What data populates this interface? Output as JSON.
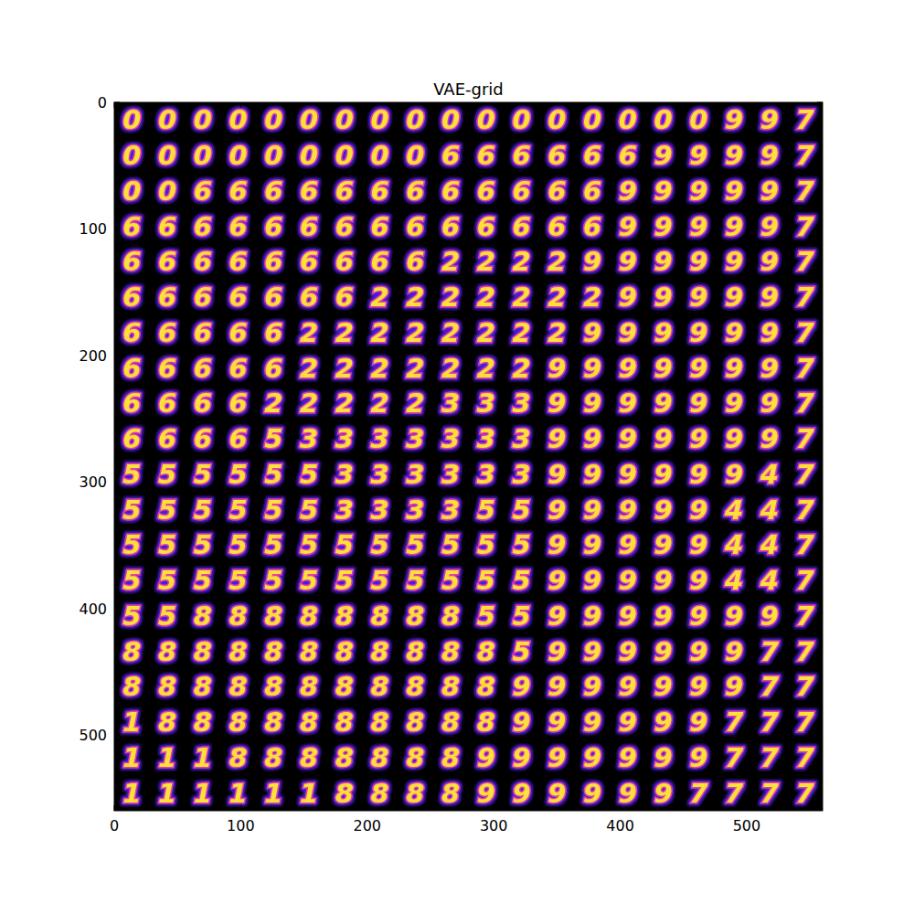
{
  "chart_data": {
    "type": "image",
    "title": "VAE-grid",
    "xlim": [
      0,
      560
    ],
    "ylim": [
      560,
      0
    ],
    "xticks": [
      0,
      100,
      200,
      300,
      400,
      500
    ],
    "yticks": [
      0,
      100,
      200,
      300,
      400,
      500
    ],
    "cells": [
      [
        0,
        0,
        0,
        0,
        0,
        0,
        0,
        0,
        0,
        0,
        0,
        0,
        0,
        0,
        0,
        0,
        0,
        9,
        9,
        7
      ],
      [
        0,
        0,
        0,
        0,
        0,
        0,
        0,
        0,
        0,
        6,
        6,
        6,
        6,
        6,
        6,
        9,
        9,
        9,
        9,
        7
      ],
      [
        0,
        0,
        6,
        6,
        6,
        6,
        6,
        6,
        6,
        6,
        6,
        6,
        6,
        6,
        9,
        9,
        9,
        9,
        9,
        7
      ],
      [
        6,
        6,
        6,
        6,
        6,
        6,
        6,
        6,
        6,
        6,
        6,
        6,
        6,
        6,
        9,
        9,
        9,
        9,
        9,
        7
      ],
      [
        6,
        6,
        6,
        6,
        6,
        6,
        6,
        6,
        6,
        2,
        2,
        2,
        2,
        9,
        9,
        9,
        9,
        9,
        9,
        7
      ],
      [
        6,
        6,
        6,
        6,
        6,
        6,
        6,
        2,
        2,
        2,
        2,
        2,
        2,
        2,
        9,
        9,
        9,
        9,
        9,
        7
      ],
      [
        6,
        6,
        6,
        6,
        6,
        2,
        2,
        2,
        2,
        2,
        2,
        2,
        2,
        9,
        9,
        9,
        9,
        9,
        9,
        7
      ],
      [
        6,
        6,
        6,
        6,
        6,
        2,
        2,
        2,
        2,
        2,
        2,
        2,
        9,
        9,
        9,
        9,
        9,
        9,
        9,
        7
      ],
      [
        6,
        6,
        6,
        6,
        2,
        2,
        2,
        2,
        2,
        3,
        3,
        3,
        9,
        9,
        9,
        9,
        9,
        9,
        9,
        7
      ],
      [
        6,
        6,
        6,
        6,
        5,
        3,
        3,
        3,
        3,
        3,
        3,
        3,
        9,
        9,
        9,
        9,
        9,
        9,
        9,
        7
      ],
      [
        5,
        5,
        5,
        5,
        5,
        5,
        3,
        3,
        3,
        3,
        3,
        3,
        9,
        9,
        9,
        9,
        9,
        9,
        4,
        7
      ],
      [
        5,
        5,
        5,
        5,
        5,
        5,
        3,
        3,
        3,
        3,
        5,
        5,
        9,
        9,
        9,
        9,
        9,
        4,
        4,
        7
      ],
      [
        5,
        5,
        5,
        5,
        5,
        5,
        5,
        5,
        5,
        5,
        5,
        5,
        9,
        9,
        9,
        9,
        9,
        4,
        4,
        7
      ],
      [
        5,
        5,
        5,
        5,
        5,
        5,
        5,
        5,
        5,
        5,
        5,
        5,
        9,
        9,
        9,
        9,
        9,
        4,
        4,
        7
      ],
      [
        5,
        5,
        8,
        8,
        8,
        8,
        8,
        8,
        8,
        8,
        5,
        5,
        9,
        9,
        9,
        9,
        9,
        9,
        9,
        7
      ],
      [
        8,
        8,
        8,
        8,
        8,
        8,
        8,
        8,
        8,
        8,
        8,
        5,
        9,
        9,
        9,
        9,
        9,
        9,
        7,
        7
      ],
      [
        8,
        8,
        8,
        8,
        8,
        8,
        8,
        8,
        8,
        8,
        8,
        9,
        9,
        9,
        9,
        9,
        9,
        9,
        7,
        7
      ],
      [
        1,
        8,
        8,
        8,
        8,
        8,
        8,
        8,
        8,
        8,
        8,
        9,
        9,
        9,
        9,
        9,
        9,
        7,
        7,
        7
      ],
      [
        1,
        1,
        1,
        8,
        8,
        8,
        8,
        8,
        8,
        8,
        9,
        9,
        9,
        9,
        9,
        9,
        9,
        7,
        7,
        7
      ],
      [
        1,
        1,
        1,
        1,
        1,
        1,
        8,
        8,
        8,
        8,
        9,
        9,
        9,
        9,
        9,
        9,
        7,
        7,
        7,
        7
      ]
    ]
  }
}
